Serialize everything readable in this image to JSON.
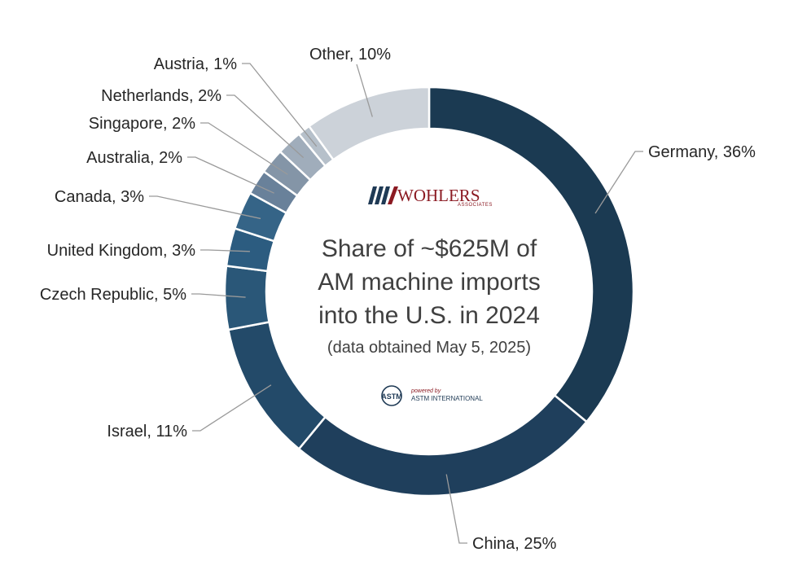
{
  "chart_data": {
    "type": "pie",
    "title": "Share of ~$625M of AM machine imports into the U.S. in 2024",
    "subtitle": "(data obtained May 5, 2025)",
    "slices": [
      {
        "name": "Germany",
        "value": 36,
        "label": "Germany, 36%",
        "color": "#1b3a52"
      },
      {
        "name": "China",
        "value": 25,
        "label": "China, 25%",
        "color": "#1f3f5c"
      },
      {
        "name": "Israel",
        "value": 11,
        "label": "Israel, 11%",
        "color": "#234a69"
      },
      {
        "name": "Czech Republic",
        "value": 5,
        "label": "Czech Republic, 5%",
        "color": "#2a5778"
      },
      {
        "name": "United Kingdom",
        "value": 3,
        "label": "United Kingdom, 3%",
        "color": "#2c5c80"
      },
      {
        "name": "Canada",
        "value": 3,
        "label": "Canada, 3%",
        "color": "#356487"
      },
      {
        "name": "Australia",
        "value": 2,
        "label": "Australia, 2%",
        "color": "#69819a"
      },
      {
        "name": "Singapore",
        "value": 2,
        "label": "Singapore, 2%",
        "color": "#8495a7"
      },
      {
        "name": "Netherlands",
        "value": 2,
        "label": "Netherlands, 2%",
        "color": "#a0adbb"
      },
      {
        "name": "Austria",
        "value": 1,
        "label": "Austria, 1%",
        "color": "#b6c0ca"
      },
      {
        "name": "Other",
        "value": 10,
        "label": "Other, 10%",
        "color": "#ccd2d9"
      }
    ]
  },
  "center": {
    "title_lines": [
      "Share of ~$625M of",
      "AM machine imports",
      "into the U.S. in 2024"
    ],
    "subtitle": "(data obtained May 5, 2025)"
  },
  "logos": {
    "wohlers_word": "WOHLERS",
    "wohlers_sub": "ASSOCIATES",
    "astm_mark": "ASTM",
    "astm_powered": "powered by",
    "astm_name": "ASTM INTERNATIONAL"
  }
}
